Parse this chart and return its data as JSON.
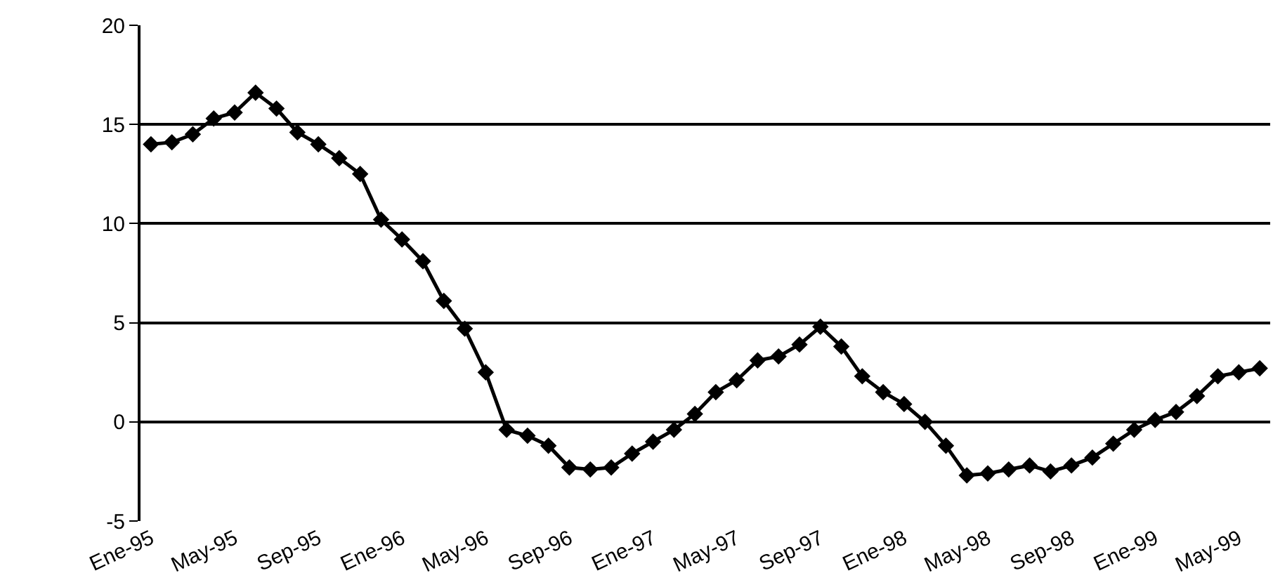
{
  "chart_data": {
    "type": "line",
    "categories": [
      "Ene-95",
      null,
      null,
      null,
      "May-95",
      null,
      null,
      null,
      "Sep-95",
      null,
      null,
      null,
      "Ene-96",
      null,
      null,
      null,
      "May-96",
      null,
      null,
      null,
      "Sep-96",
      null,
      null,
      null,
      "Ene-97",
      null,
      null,
      null,
      "May-97",
      null,
      null,
      null,
      "Sep-97",
      null,
      null,
      null,
      "Ene-98",
      null,
      null,
      null,
      "May-98",
      null,
      null,
      null,
      "Sep-98",
      null,
      null,
      null,
      "Ene-99",
      null,
      null,
      null,
      "May-99",
      null
    ],
    "series": [
      {
        "color": "#000000",
        "values": [
          14.0,
          14.1,
          14.5,
          15.3,
          15.6,
          16.6,
          15.8,
          14.6,
          14.0,
          13.3,
          12.5,
          10.2,
          9.2,
          8.1,
          6.1,
          4.7,
          2.5,
          -0.4,
          -0.7,
          -1.2,
          -2.3,
          -2.4,
          -2.3,
          -1.6,
          -1.0,
          -0.4,
          0.4,
          1.5,
          2.1,
          3.1,
          3.3,
          3.9,
          4.8,
          3.8,
          2.3,
          1.5,
          0.9,
          0.0,
          -1.2,
          -2.7,
          -2.6,
          -2.4,
          -2.2,
          -2.5,
          -2.2,
          -1.8,
          -1.1,
          -0.4,
          0.1,
          0.5,
          1.3,
          2.3,
          2.5,
          2.7
        ]
      }
    ],
    "ylim": [
      -5,
      20
    ],
    "yticks": [
      -5,
      0,
      5,
      10,
      15,
      20
    ],
    "grid": "y",
    "marker": "diamond",
    "line_style": "solid",
    "legend": false
  }
}
